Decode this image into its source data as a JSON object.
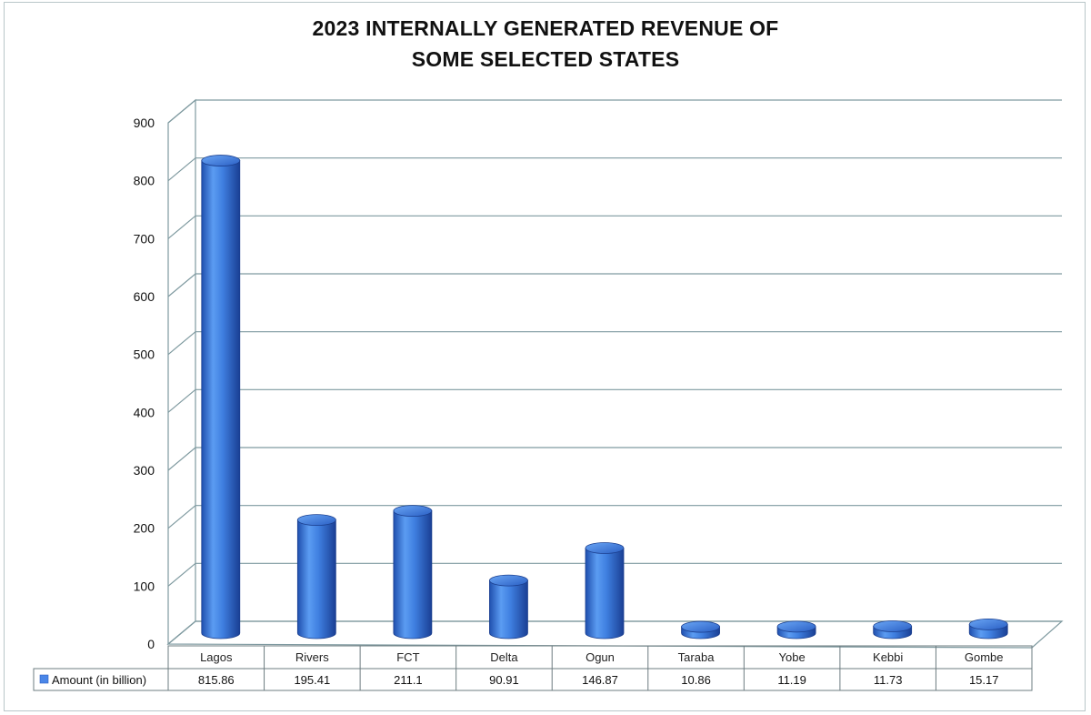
{
  "chart_data": {
    "type": "bar",
    "title_lines": [
      "2023 INTERNALLY GENERATED REVENUE OF",
      "SOME SELECTED STATES"
    ],
    "categories": [
      "Lagos",
      "Rivers",
      "FCT",
      "Delta",
      "Ogun",
      "Taraba",
      "Yobe",
      "Kebbi",
      "Gombe"
    ],
    "series": [
      {
        "name": "Amount (in billion)",
        "values": [
          815.86,
          195.41,
          211.1,
          90.91,
          146.87,
          10.86,
          11.19,
          11.73,
          15.17
        ],
        "value_labels": [
          "815.86",
          "195.41",
          "211.1",
          "90.91",
          "146.87",
          "10.86",
          "11.19",
          "11.73",
          "15.17"
        ],
        "color": "#4a86e8"
      }
    ],
    "y_ticks": [
      "0",
      "100",
      "200",
      "300",
      "400",
      "500",
      "600",
      "700",
      "800",
      "900"
    ],
    "ylim": [
      0,
      900
    ],
    "grid": true,
    "legend": "data-table-left",
    "style": "3d-cylinder"
  }
}
